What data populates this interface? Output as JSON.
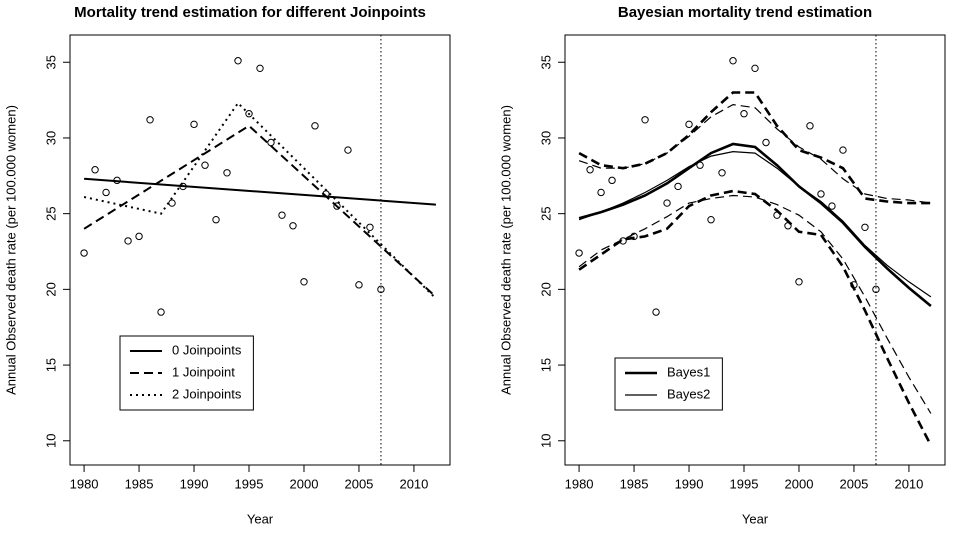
{
  "chart_data": [
    {
      "type": "line",
      "title": "Mortality trend estimation for different Joinpoints",
      "xlabel": "Year",
      "ylabel": "Annual Observed death rate (per 100.000 women)",
      "xlim": [
        1978.72,
        2013.28
      ],
      "xticks": [
        1980,
        1985,
        1990,
        1995,
        2000,
        2005,
        2010
      ],
      "ylim": [
        8.4,
        36.8
      ],
      "yticks": [
        10,
        15,
        20,
        25,
        30,
        35
      ],
      "vline": 2007,
      "legend": "bottomleft",
      "scatter": {
        "x": [
          1980,
          1981,
          1982,
          1983,
          1984,
          1985,
          1986,
          1987,
          1988,
          1989,
          1990,
          1991,
          1992,
          1993,
          1994,
          1995,
          1996,
          1997,
          1998,
          1999,
          2000,
          2001,
          2002,
          2003,
          2004,
          2005,
          2006,
          2007
        ],
        "y": [
          22.4,
          27.9,
          26.4,
          27.2,
          23.2,
          23.5,
          31.2,
          18.5,
          25.7,
          26.8,
          30.9,
          28.2,
          24.6,
          27.7,
          35.1,
          31.6,
          34.6,
          29.7,
          24.9,
          24.2,
          20.5,
          30.8,
          26.3,
          25.5,
          29.2,
          20.3,
          24.1,
          20.0
        ]
      },
      "series": [
        {
          "name": "0 Joinpoints",
          "color": "#000000",
          "dash": "solid",
          "width": 2,
          "x": [
            1980,
            2012
          ],
          "values": [
            27.3,
            25.6
          ]
        },
        {
          "name": "1 Joinpoint",
          "color": "#000000",
          "dash": "dashed",
          "width": 2,
          "x": [
            1980,
            1995,
            2012
          ],
          "values": [
            24.0,
            30.8,
            19.5
          ]
        },
        {
          "name": "2 Joinpoints",
          "color": "#000000",
          "dash": "dotted",
          "width": 2,
          "x": [
            1980,
            1987,
            1994,
            2012
          ],
          "values": [
            26.1,
            25.0,
            32.3,
            19.4
          ]
        }
      ]
    },
    {
      "type": "band-line",
      "title": "Bayesian mortality trend estimation",
      "xlabel": "Year",
      "ylabel": "Annual Observed death rate (per 100.000 women)",
      "xlim": [
        1978.72,
        2013.28
      ],
      "xticks": [
        1980,
        1985,
        1990,
        1995,
        2000,
        2005,
        2010
      ],
      "ylim": [
        8.4,
        36.8
      ],
      "yticks": [
        10,
        15,
        20,
        25,
        30,
        35
      ],
      "vline": 2007,
      "legend": "bottomleft",
      "scatter": {
        "x": [
          1980,
          1981,
          1982,
          1983,
          1984,
          1985,
          1986,
          1987,
          1988,
          1989,
          1990,
          1991,
          1992,
          1993,
          1994,
          1995,
          1996,
          1997,
          1998,
          1999,
          2000,
          2001,
          2002,
          2003,
          2004,
          2005,
          2006,
          2007
        ],
        "y": [
          22.4,
          27.9,
          26.4,
          27.2,
          23.2,
          23.5,
          31.2,
          18.5,
          25.7,
          26.8,
          30.9,
          28.2,
          24.6,
          27.7,
          35.1,
          31.6,
          34.6,
          29.7,
          24.9,
          24.2,
          20.5,
          30.8,
          26.3,
          25.5,
          29.2,
          20.3,
          24.1,
          20.0
        ]
      },
      "x": [
        1980,
        1982,
        1984,
        1986,
        1988,
        1990,
        1992,
        1994,
        1996,
        1998,
        2000,
        2002,
        2004,
        2006,
        2008,
        2010,
        2012
      ],
      "series": [
        {
          "name": "Bayes1",
          "color": "#000000",
          "width": 2.6,
          "values": [
            24.7,
            25.1,
            25.6,
            26.2,
            27.0,
            28.0,
            29.0,
            29.6,
            29.4,
            28.2,
            26.8,
            25.7,
            24.4,
            22.8,
            21.4,
            20.1,
            18.9
          ],
          "lower": [
            21.3,
            22.3,
            23.3,
            23.5,
            24.0,
            25.5,
            26.2,
            26.5,
            26.3,
            25.2,
            23.8,
            23.6,
            21.5,
            18.6,
            15.5,
            12.5,
            9.7
          ],
          "upper": [
            29.0,
            28.2,
            28.0,
            28.3,
            29.0,
            30.2,
            31.7,
            33.0,
            33.0,
            30.8,
            29.2,
            28.7,
            28.0,
            26.0,
            25.8,
            25.7,
            25.7
          ]
        },
        {
          "name": "Bayes2",
          "color": "#000000",
          "width": 1.2,
          "values": [
            24.6,
            25.1,
            25.7,
            26.4,
            27.2,
            28.1,
            28.8,
            29.1,
            29.0,
            28.0,
            26.8,
            25.8,
            24.5,
            22.9,
            21.6,
            20.5,
            19.5
          ],
          "lower": [
            21.5,
            22.6,
            23.3,
            24.0,
            24.8,
            25.7,
            26.0,
            26.2,
            26.1,
            25.6,
            24.9,
            23.8,
            22.0,
            19.5,
            16.8,
            14.2,
            11.8
          ],
          "upper": [
            28.5,
            28.0,
            28.0,
            28.3,
            29.0,
            30.1,
            31.4,
            32.2,
            32.0,
            30.6,
            29.4,
            28.6,
            27.3,
            26.3,
            26.0,
            25.9,
            25.7
          ]
        }
      ]
    }
  ]
}
